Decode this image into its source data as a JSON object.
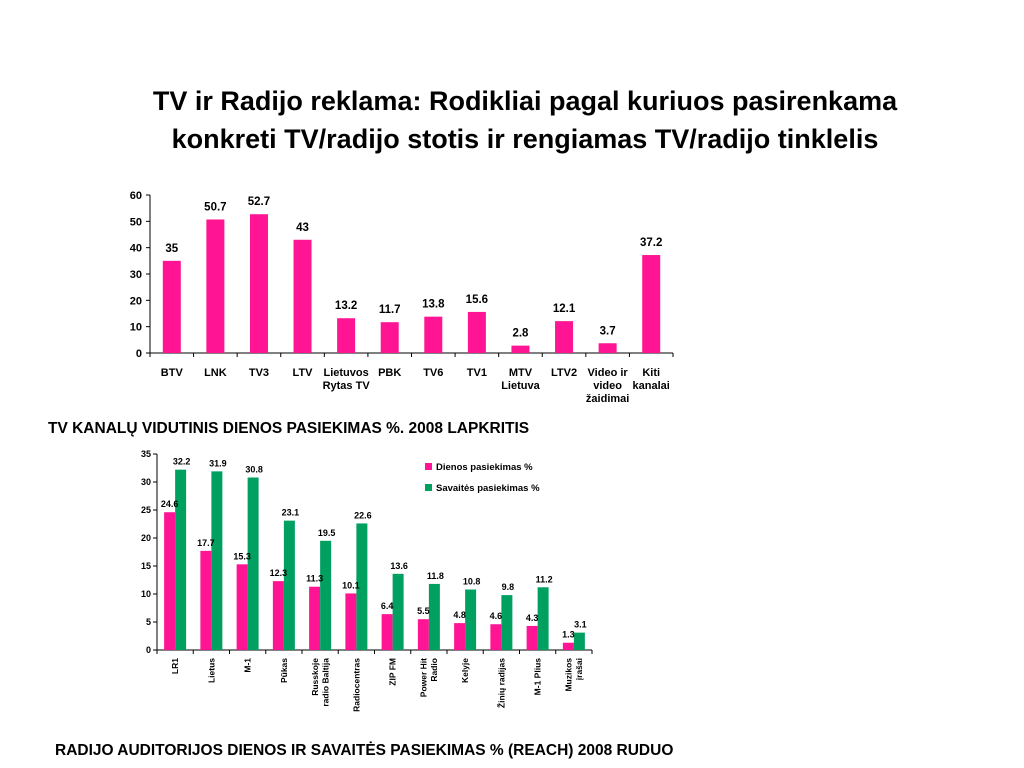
{
  "slide": {
    "title_line1": "TV ir Radijo reklama: Rodikliai pagal kuriuos  pasirenkama",
    "title_line2": "konkreti TV/radijo stotis ir rengiamas TV/radijo tinklelis"
  },
  "chart_data": [
    {
      "type": "bar",
      "title": "TV KANALŲ VIDUTINIS DIENOS PASIEKIMAS %. 2008 LAPKRITIS",
      "categories": [
        [
          "BTV"
        ],
        [
          "LNK"
        ],
        [
          "TV3"
        ],
        [
          "LTV"
        ],
        [
          "Lietuvos",
          "Rytas TV"
        ],
        [
          "PBK"
        ],
        [
          "TV6"
        ],
        [
          "TV1"
        ],
        [
          "MTV",
          "Lietuva"
        ],
        [
          "LTV2"
        ],
        [
          "Video ir",
          "video",
          "žaidimai"
        ],
        [
          "Kiti",
          "kanalai"
        ]
      ],
      "values": [
        35,
        50.7,
        52.7,
        43,
        13.2,
        11.7,
        13.8,
        15.6,
        2.8,
        12.1,
        3.7,
        37.2
      ],
      "value_labels": [
        "35",
        "50.7",
        "52.7",
        "43",
        "13.2",
        "11.7",
        "13.8",
        "15.6",
        "2.8",
        "12.1",
        "3.7",
        "37.2"
      ],
      "yticks": [
        "0",
        "10",
        "20",
        "30",
        "40",
        "50",
        "60"
      ],
      "ylim": [
        0,
        60
      ],
      "color": "#ff1493",
      "grid": false
    },
    {
      "type": "bar",
      "title": "RADIJO AUDITORIJOS DIENOS IR SAVAITĖS PASIEKIMAS % (REACH) 2008 RUDUO",
      "categories": [
        [
          "LR1"
        ],
        [
          "Lietus"
        ],
        [
          "M-1"
        ],
        [
          "Pūkas"
        ],
        [
          "Russkoje",
          "radio Baltija"
        ],
        [
          "Radiocentras"
        ],
        [
          "ZIP FM"
        ],
        [
          "Power Hit",
          "Radio"
        ],
        [
          "Kelyje"
        ],
        [
          "Žinių radijas"
        ],
        [
          "M-1 Plius"
        ],
        [
          "Muzikos",
          "įrašai"
        ]
      ],
      "series": [
        {
          "name": "Dienos pasiekimas %",
          "color": "#ff1493",
          "values": [
            24.6,
            17.7,
            15.3,
            12.3,
            11.3,
            10.1,
            6.4,
            5.5,
            4.8,
            4.6,
            4.3,
            1.3
          ],
          "labels": [
            "24.6",
            "17.7",
            "15.3",
            "12.3",
            "11.3",
            "10.1",
            "6.4",
            "5.5",
            "4.8",
            "4.6",
            "4.3",
            "1.3"
          ]
        },
        {
          "name": "Savaitės pasiekimas %",
          "color": "#00a060",
          "values": [
            32.2,
            31.9,
            30.8,
            23.1,
            19.5,
            22.6,
            13.6,
            11.8,
            10.8,
            9.8,
            11.2,
            3.1
          ],
          "labels": [
            "32.2",
            "31.9",
            "30.8",
            "23.1",
            "19.5",
            "22.6",
            "13.6",
            "11.8",
            "10.8",
            "9.8",
            "11.2",
            "3.1"
          ]
        }
      ],
      "yticks": [
        "0",
        "5",
        "10",
        "15",
        "20",
        "25",
        "30",
        "35"
      ],
      "ylim": [
        0,
        35
      ],
      "legend_position": "top-right",
      "grid": false
    }
  ]
}
